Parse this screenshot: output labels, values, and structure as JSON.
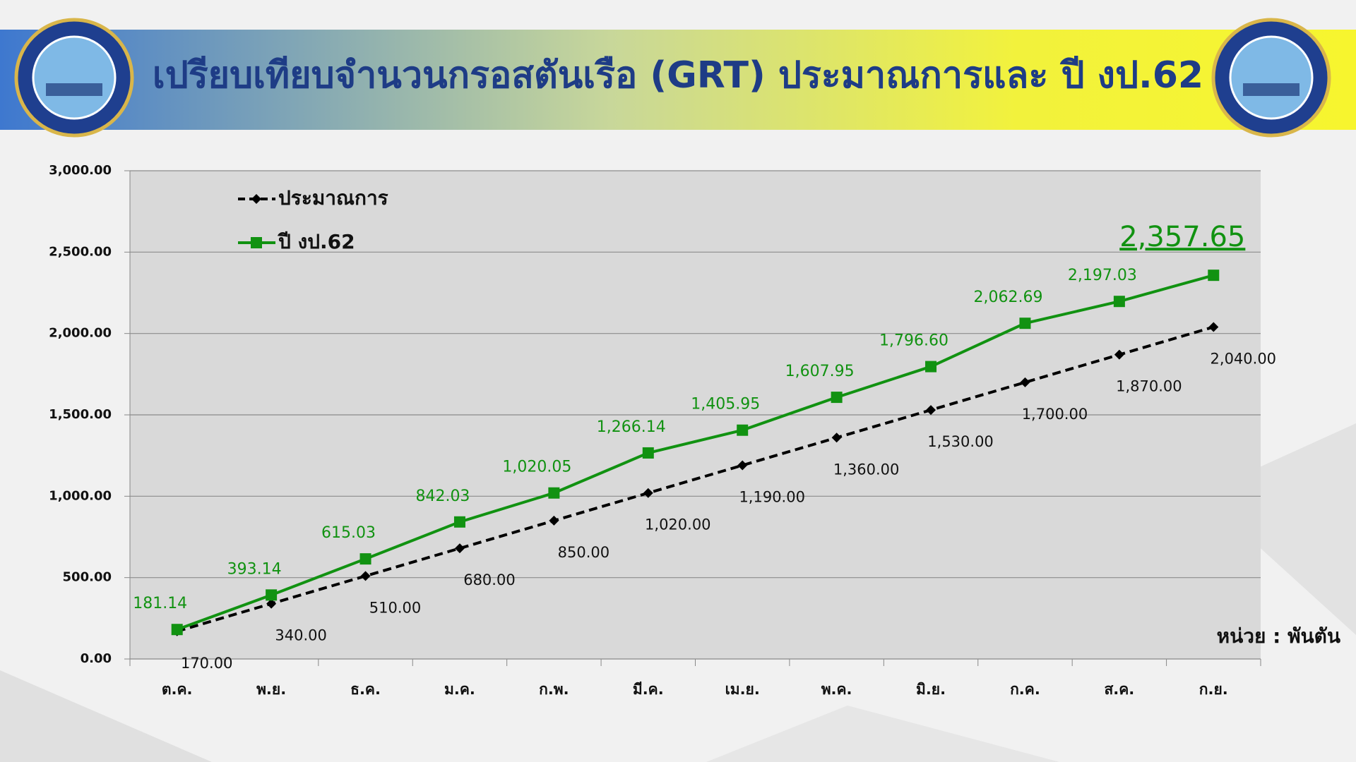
{
  "chart_data": {
    "type": "line",
    "title": "เปรียบเทียบจำนวนกรอสตันเรือ (GRT) ประมาณการและ ปี งป.62",
    "unit_label": "หน่วย : พันตัน",
    "categories": [
      "ต.ค.",
      "พ.ย.",
      "ธ.ค.",
      "ม.ค.",
      "ก.พ.",
      "มี.ค.",
      "เม.ย.",
      "พ.ค.",
      "มิ.ย.",
      "ก.ค.",
      "ส.ค.",
      "ก.ย."
    ],
    "series": [
      {
        "name": "ประมาณการ",
        "color": "#000000",
        "dash": true,
        "marker": "diamond",
        "values": [
          170,
          340,
          510,
          680,
          850,
          1020,
          1190,
          1360,
          1530,
          1700,
          1870,
          2040
        ],
        "value_labels": [
          "170.00",
          "340.00",
          "510.00",
          "680.00",
          "850.00",
          "1,020.00",
          "1,190.00",
          "1,360.00",
          "1,530.00",
          "1,700.00",
          "1,870.00",
          "2,040.00"
        ]
      },
      {
        "name": "ปี งป.62",
        "color": "#119211",
        "dash": false,
        "marker": "square",
        "values": [
          181.14,
          393.14,
          615.03,
          842.03,
          1020.05,
          1266.14,
          1405.95,
          1607.95,
          1796.6,
          2062.69,
          2197.03,
          2357.65
        ],
        "value_labels": [
          "181.14",
          "393.14",
          "615.03",
          "842.03",
          "1,020.05",
          "1,266.14",
          "1,405.95",
          "1,607.95",
          "1,796.60",
          "2,062.69",
          "2,197.03",
          "2,357.65"
        ]
      }
    ],
    "ylim": [
      0,
      3000
    ],
    "yticks": [
      {
        "value": 0,
        "label": "0.00"
      },
      {
        "value": 500,
        "label": "500.00"
      },
      {
        "value": 1000,
        "label": "1,000.00"
      },
      {
        "value": 1500,
        "label": "1,500.00"
      },
      {
        "value": 2000,
        "label": "2,000.00"
      },
      {
        "value": 2500,
        "label": "2,500.00"
      },
      {
        "value": 3000,
        "label": "3,000.00"
      }
    ],
    "grid": true
  }
}
